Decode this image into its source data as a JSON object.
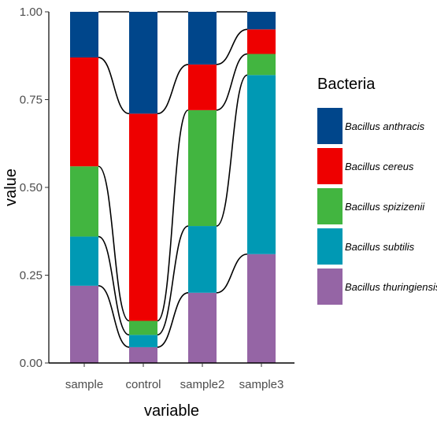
{
  "chart_data": {
    "type": "bar",
    "stacked": true,
    "categories": [
      "sample",
      "control",
      "sample2",
      "sample3"
    ],
    "xlabel": "variable",
    "ylabel": "value",
    "ylim": [
      0,
      1
    ],
    "yticks": [
      "0.00",
      "0.25",
      "0.50",
      "0.75",
      "1.00"
    ],
    "legend_title": "Bacteria",
    "legend_position": "right",
    "alluvial_connectors": true,
    "series": [
      {
        "name": "Bacillus thuringiensis",
        "color": "#9565A5",
        "values": [
          0.22,
          0.045,
          0.2,
          0.31
        ]
      },
      {
        "name": "Bacillus subtilis",
        "color": "#0099B4",
        "values": [
          0.14,
          0.035,
          0.19,
          0.51
        ]
      },
      {
        "name": "Bacillus spizizenii",
        "color": "#42B540",
        "values": [
          0.2,
          0.04,
          0.33,
          0.06
        ]
      },
      {
        "name": "Bacillus cereus",
        "color": "#EE0000",
        "values": [
          0.31,
          0.59,
          0.13,
          0.07
        ]
      },
      {
        "name": "Bacillus anthracis",
        "color": "#00468B",
        "values": [
          0.13,
          0.29,
          0.15,
          0.05
        ]
      }
    ],
    "legend_order": [
      "Bacillus anthracis",
      "Bacillus cereus",
      "Bacillus spizizenii",
      "Bacillus subtilis",
      "Bacillus thuringiensis"
    ]
  }
}
